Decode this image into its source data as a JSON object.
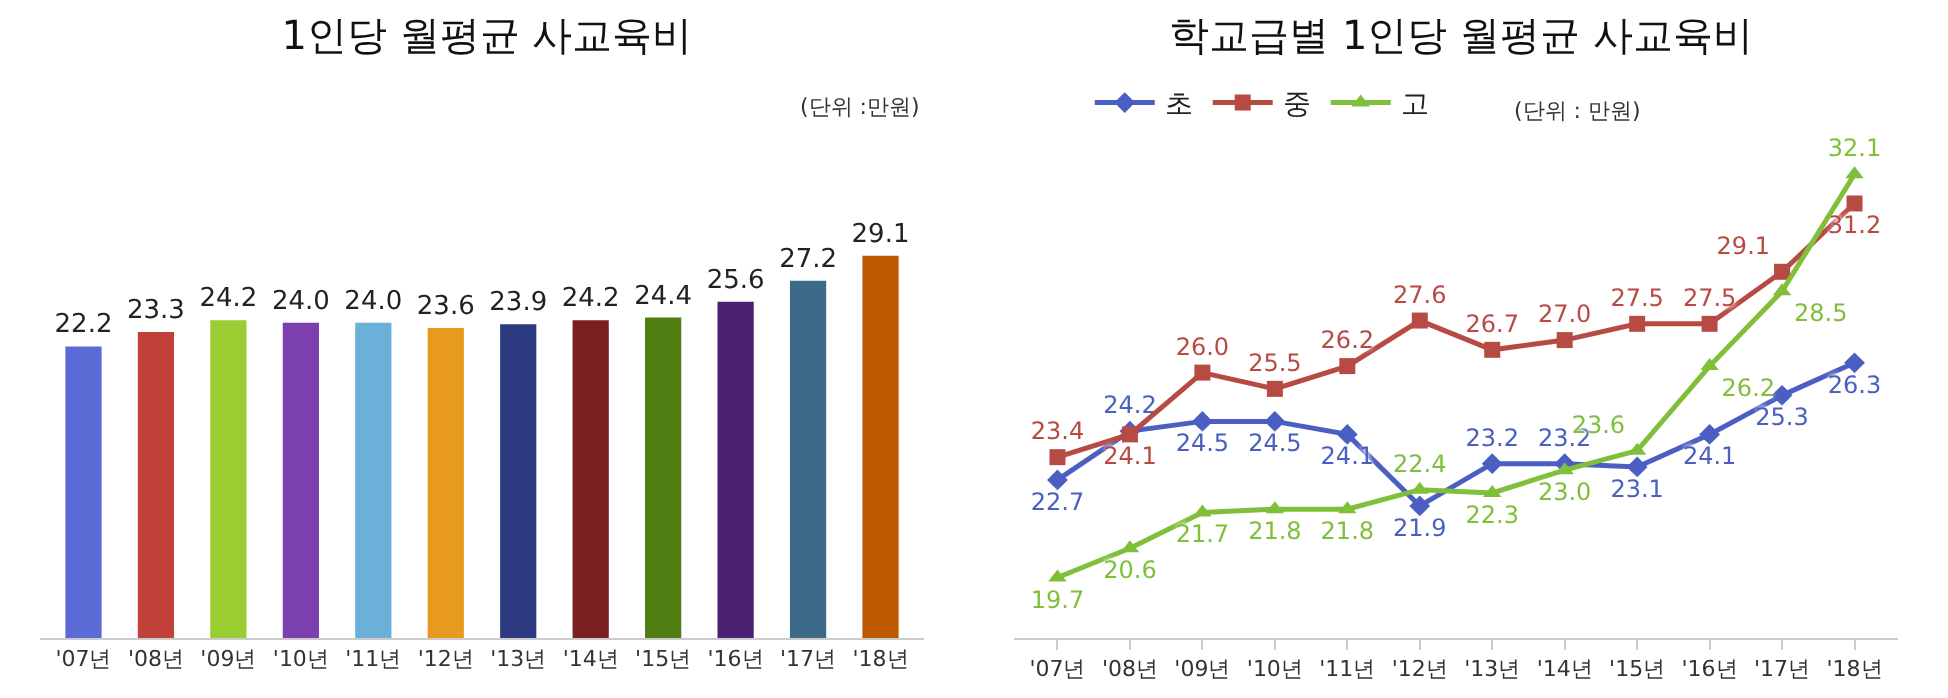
{
  "chart_data": [
    {
      "type": "bar",
      "title": "1인당 월평균 사교육비",
      "annotations": [
        "(단위 :만원)"
      ],
      "legend": false,
      "grid": false,
      "categories": [
        "'07년",
        "'08년",
        "'09년",
        "'10년",
        "'11년",
        "'12년",
        "'13년",
        "'14년",
        "'15년",
        "'16년",
        "'17년",
        "'18년"
      ],
      "values": [
        22.2,
        23.3,
        24.2,
        24.0,
        24.0,
        23.6,
        23.9,
        24.2,
        24.4,
        25.6,
        27.2,
        29.1
      ],
      "value_labels": [
        "22.2",
        "23.3",
        "24.2",
        "24.0",
        "24.0",
        "23.6",
        "23.9",
        "24.2",
        "24.4",
        "25.6",
        "27.2",
        "29.1"
      ],
      "colors": [
        "#5b6bd6",
        "#c0403a",
        "#9acd32",
        "#7b3fb0",
        "#6ab0d8",
        "#e89a1e",
        "#2e3a80",
        "#7a2020",
        "#4f7d12",
        "#4a2070",
        "#3c6a88",
        "#c05a00"
      ]
    },
    {
      "type": "line",
      "title": "학교급별 1인당 월평균 사교육비",
      "annotations": [
        "(단위 : 만원)"
      ],
      "legend": "top",
      "grid": false,
      "categories": [
        "'07년",
        "'08년",
        "'09년",
        "'10년",
        "'11년",
        "'12년",
        "'13년",
        "'14년",
        "'15년",
        "'16년",
        "'17년",
        "'18년"
      ],
      "series": [
        {
          "name": "초",
          "color": "#4a5fc1",
          "marker": "diamond",
          "values": [
            22.7,
            24.2,
            24.5,
            24.5,
            24.1,
            21.9,
            23.2,
            23.2,
            23.1,
            24.1,
            25.3,
            26.3
          ],
          "value_labels": [
            "22.7",
            "24.2",
            "24.5",
            "24.5",
            "24.1",
            "21.9",
            "23.2",
            "23.2",
            "23.1",
            "24.1",
            "25.3",
            "26.3"
          ]
        },
        {
          "name": "중",
          "color": "#b84a44",
          "marker": "square",
          "values": [
            23.4,
            24.1,
            26.0,
            25.5,
            26.2,
            27.6,
            26.7,
            27.0,
            27.5,
            27.5,
            29.1,
            31.2
          ],
          "value_labels": [
            "23.4",
            "24.1",
            "26.0",
            "25.5",
            "26.2",
            "27.6",
            "26.7",
            "27.0",
            "27.5",
            "27.5",
            "29.1",
            "31.2"
          ]
        },
        {
          "name": "고",
          "color": "#7fbf3a",
          "marker": "triangle",
          "values": [
            19.7,
            20.6,
            21.7,
            21.8,
            21.8,
            22.4,
            22.3,
            23.0,
            23.6,
            26.2,
            28.5,
            32.1
          ],
          "value_labels": [
            "19.7",
            "20.6",
            "21.7",
            "21.8",
            "21.8",
            "22.4",
            "22.3",
            "23.0",
            "23.6",
            "26.2",
            "28.5",
            "32.1"
          ]
        }
      ]
    }
  ]
}
